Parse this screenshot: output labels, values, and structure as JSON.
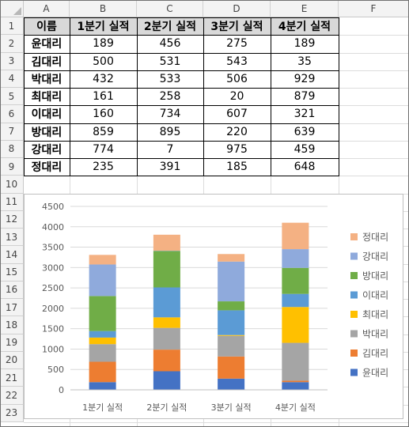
{
  "columns": [
    "A",
    "B",
    "C",
    "D",
    "E",
    "F"
  ],
  "rows": [
    "1",
    "2",
    "3",
    "4",
    "5",
    "6",
    "7",
    "8",
    "9",
    "10",
    "11",
    "12",
    "13",
    "14",
    "15",
    "16",
    "17",
    "18",
    "19",
    "20",
    "21",
    "22",
    "23"
  ],
  "table": {
    "headers": [
      "이름",
      "1분기 실적",
      "2분기 실적",
      "3분기 실적",
      "4분기 실적"
    ],
    "rows": [
      [
        "윤대리",
        "189",
        "456",
        "275",
        "189"
      ],
      [
        "김대리",
        "500",
        "531",
        "543",
        "35"
      ],
      [
        "박대리",
        "432",
        "533",
        "506",
        "929"
      ],
      [
        "최대리",
        "161",
        "258",
        "20",
        "879"
      ],
      [
        "이대리",
        "160",
        "734",
        "607",
        "321"
      ],
      [
        "방대리",
        "859",
        "895",
        "220",
        "639"
      ],
      [
        "강대리",
        "774",
        "7",
        "975",
        "459"
      ],
      [
        "정대리",
        "235",
        "391",
        "185",
        "648"
      ]
    ]
  },
  "chart_data": {
    "type": "bar",
    "stacked": true,
    "categories": [
      "1분기 실적",
      "2분기 실적",
      "3분기 실적",
      "4분기 실적"
    ],
    "series": [
      {
        "name": "윤대리",
        "color": "#4472c4",
        "values": [
          189,
          456,
          275,
          189
        ]
      },
      {
        "name": "김대리",
        "color": "#ed7d31",
        "values": [
          500,
          531,
          543,
          35
        ]
      },
      {
        "name": "박대리",
        "color": "#a5a5a5",
        "values": [
          432,
          533,
          506,
          929
        ]
      },
      {
        "name": "최대리",
        "color": "#ffc000",
        "values": [
          161,
          258,
          20,
          879
        ]
      },
      {
        "name": "이대리",
        "color": "#5b9bd5",
        "values": [
          160,
          734,
          607,
          321
        ]
      },
      {
        "name": "방대리",
        "color": "#70ad47",
        "values": [
          859,
          895,
          220,
          639
        ]
      },
      {
        "name": "강대리",
        "color": "#8faadc",
        "values": [
          774,
          7,
          975,
          459
        ]
      },
      {
        "name": "정대리",
        "color": "#f4b183",
        "values": [
          235,
          391,
          185,
          648
        ]
      }
    ],
    "ylim": [
      0,
      4500
    ],
    "yticks": [
      "0",
      "500",
      "1000",
      "1500",
      "2000",
      "2500",
      "3000",
      "3500",
      "4000",
      "4500"
    ],
    "grid": true,
    "legend": "right"
  },
  "colors": {
    "header_bg": "#f3f3f3",
    "table_header_bg": "#d9d9d9",
    "gridline": "#d9d9d9"
  }
}
